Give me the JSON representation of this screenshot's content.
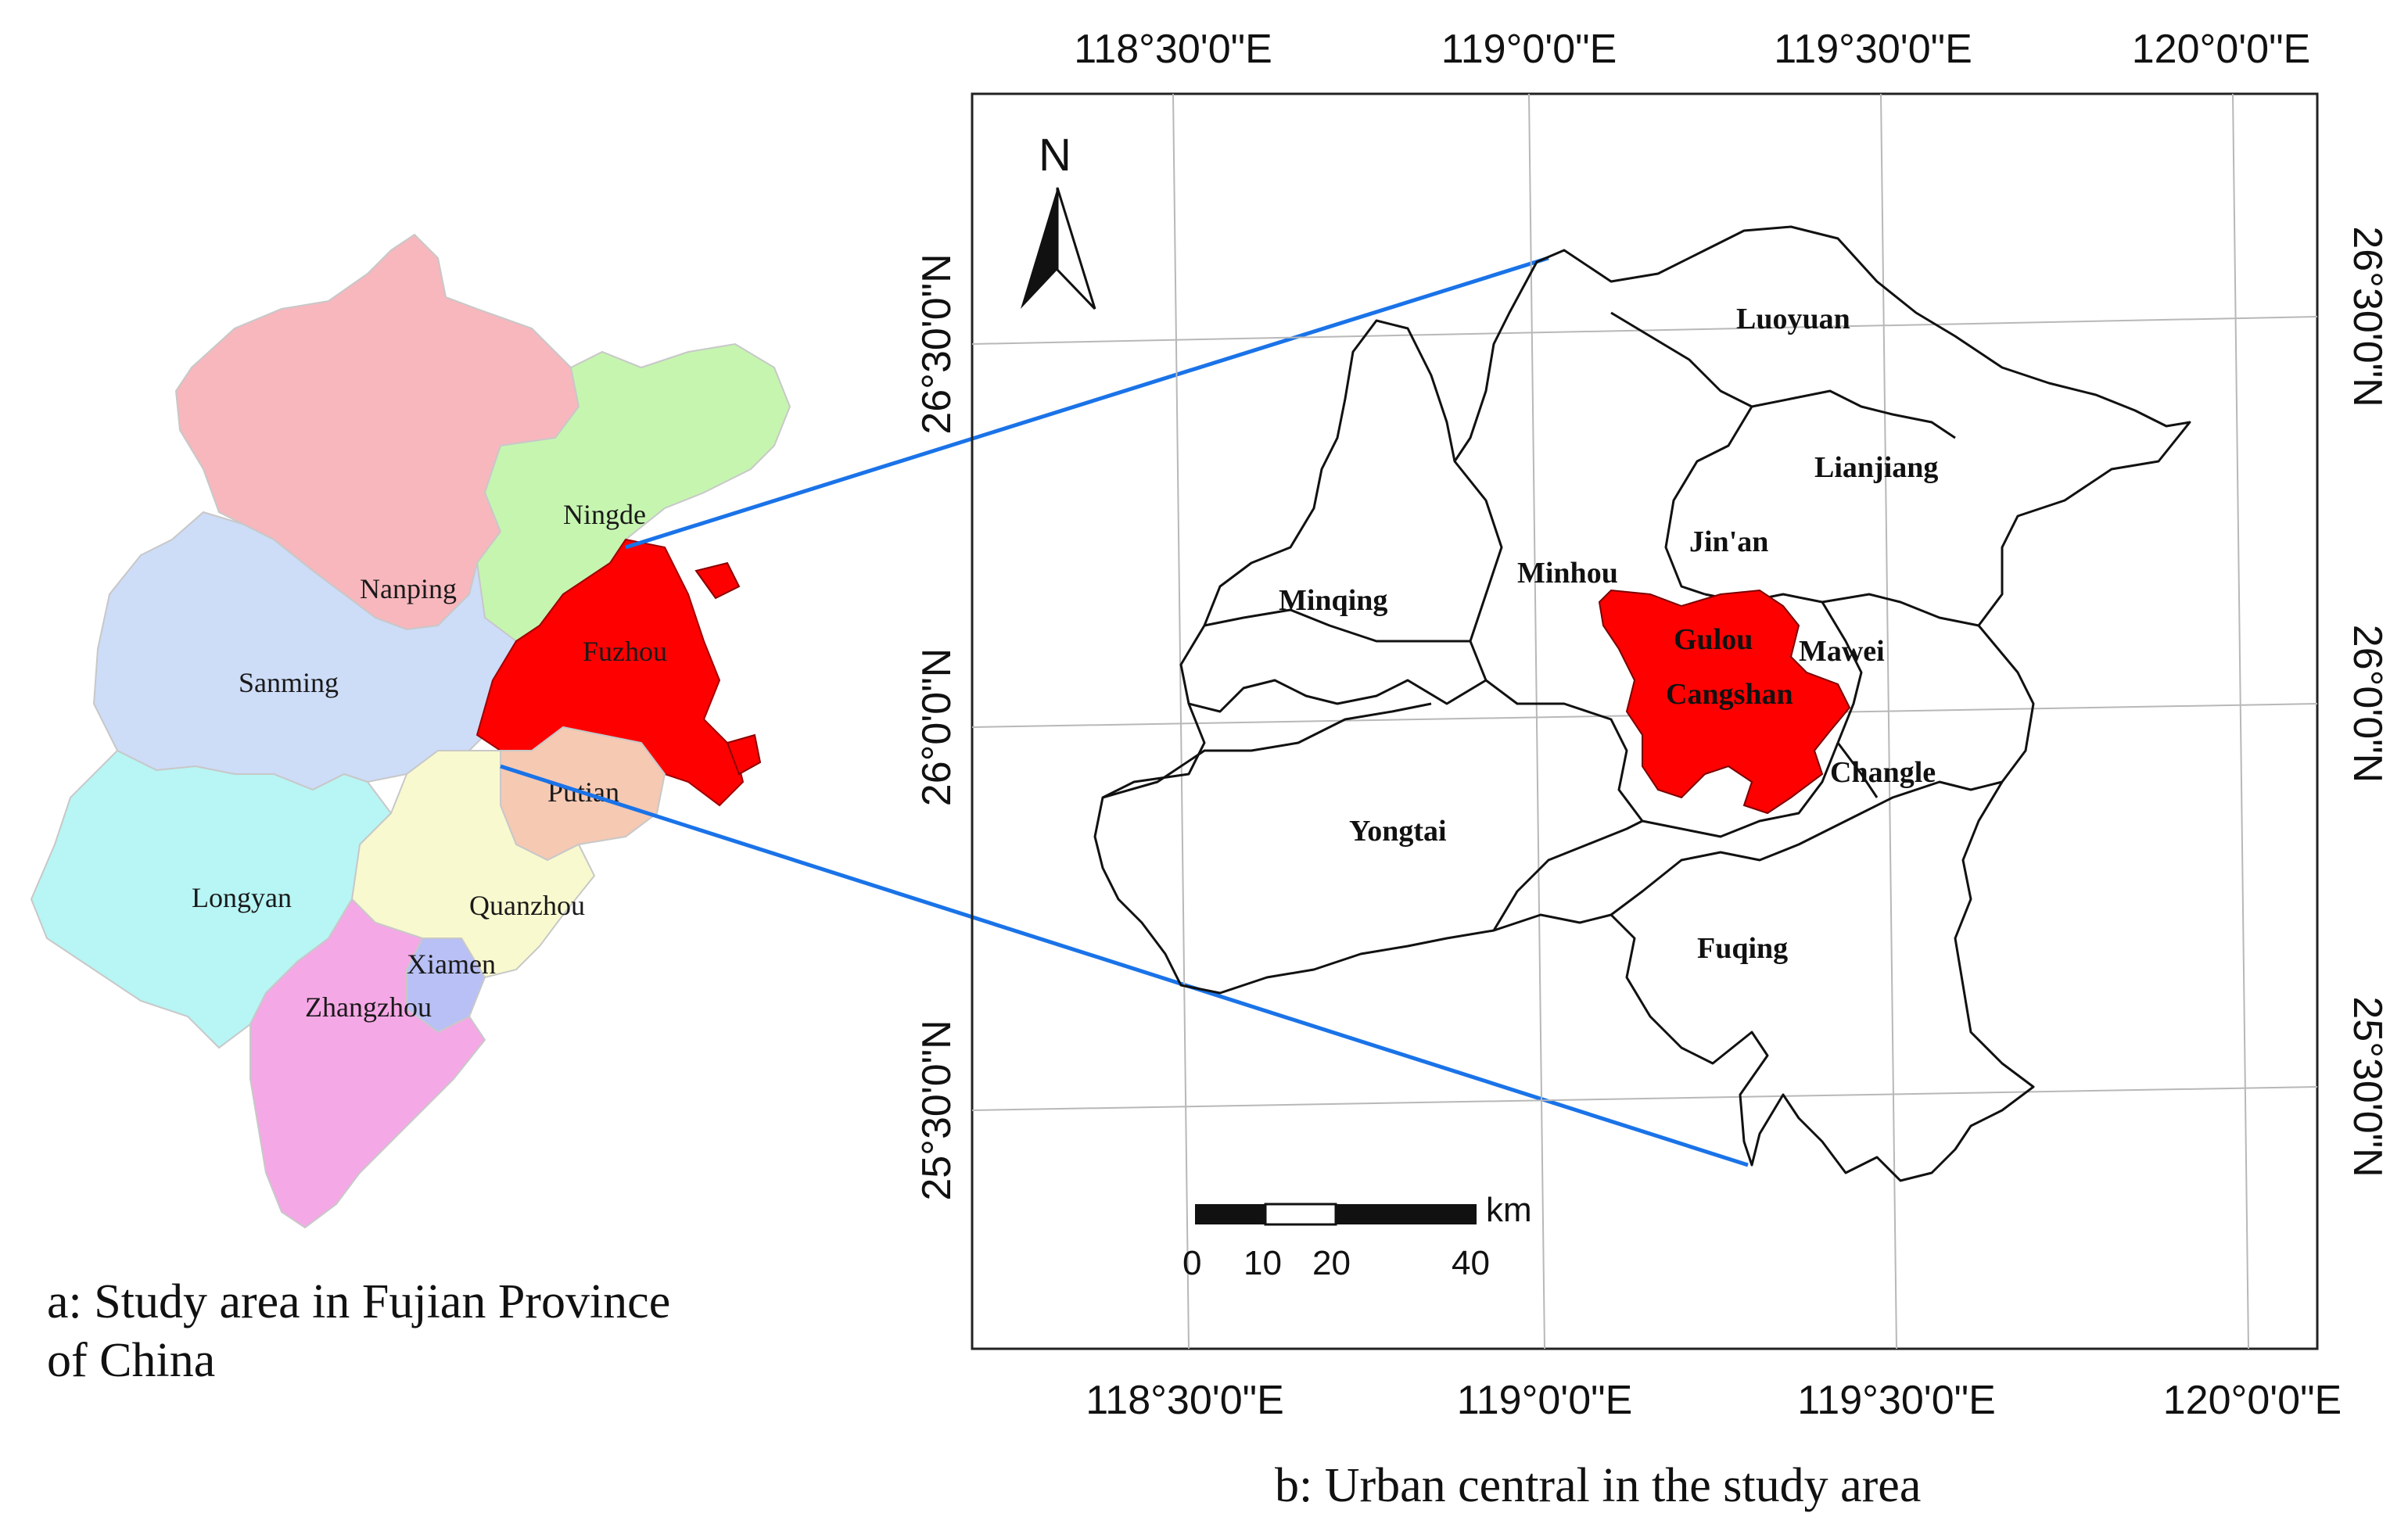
{
  "panel_a": {
    "caption_line1": "a: Study area in Fujian Province",
    "caption_line2": "of China",
    "cities": [
      {
        "name": "Nanping",
        "color": "#f7b7bd"
      },
      {
        "name": "Ningde",
        "color": "#c6f5b0"
      },
      {
        "name": "Sanming",
        "color": "#cddcf7"
      },
      {
        "name": "Fuzhou",
        "color": "#ff0000"
      },
      {
        "name": "Putian",
        "color": "#f6c9b3"
      },
      {
        "name": "Longyan",
        "color": "#b8f5f5"
      },
      {
        "name": "Quanzhou",
        "color": "#f9f9cf"
      },
      {
        "name": "Xiamen",
        "color": "#b8c0f5"
      },
      {
        "name": "Zhangzhou",
        "color": "#f5a8e6"
      }
    ],
    "city_labels": {
      "nanping": "Nanping",
      "ningde": "Ningde",
      "sanming": "Sanming",
      "fuzhou": "Fuzhou",
      "putian": "Putian",
      "longyan": "Longyan",
      "quanzhou": "Quanzhou",
      "xiamen": "Xiamen",
      "zhangzhou": "Zhangzhou"
    }
  },
  "panel_b": {
    "caption": "b: Urban central in the study area",
    "top_lon_labels": [
      "118°30'0\"E",
      "119°0'0\"E",
      "119°30'0\"E",
      "120°0'0\"E"
    ],
    "bottom_lon_labels": [
      "118°30'0\"E",
      "119°0'0\"E",
      "119°30'0\"E",
      "120°0'0\"E"
    ],
    "left_lat_labels": [
      "26°30'0\"N",
      "26°0'0\"N",
      "25°30'0\"N"
    ],
    "right_lat_labels": [
      "26°30'0\"N",
      "26°0'0\"N",
      "25°30'0\"N"
    ],
    "north_arrow_label": "N",
    "scale_bar": {
      "unit": "km",
      "ticks": [
        "0",
        "10",
        "20",
        "40"
      ]
    },
    "districts": {
      "luoyuan": "Luoyuan",
      "lianjiang": "Lianjiang",
      "jinan": "Jin'an",
      "minhou": "Minhou",
      "minqing": "Minqing",
      "gulou": "Gulou",
      "mawei": "Mawei",
      "cangshan": "Cangshan",
      "changle": "Changle",
      "yongtai": "Yongtai",
      "fuqing": "Fuqing"
    },
    "urban_color": "#ff0000",
    "leader_line_color": "#1a73e8"
  }
}
